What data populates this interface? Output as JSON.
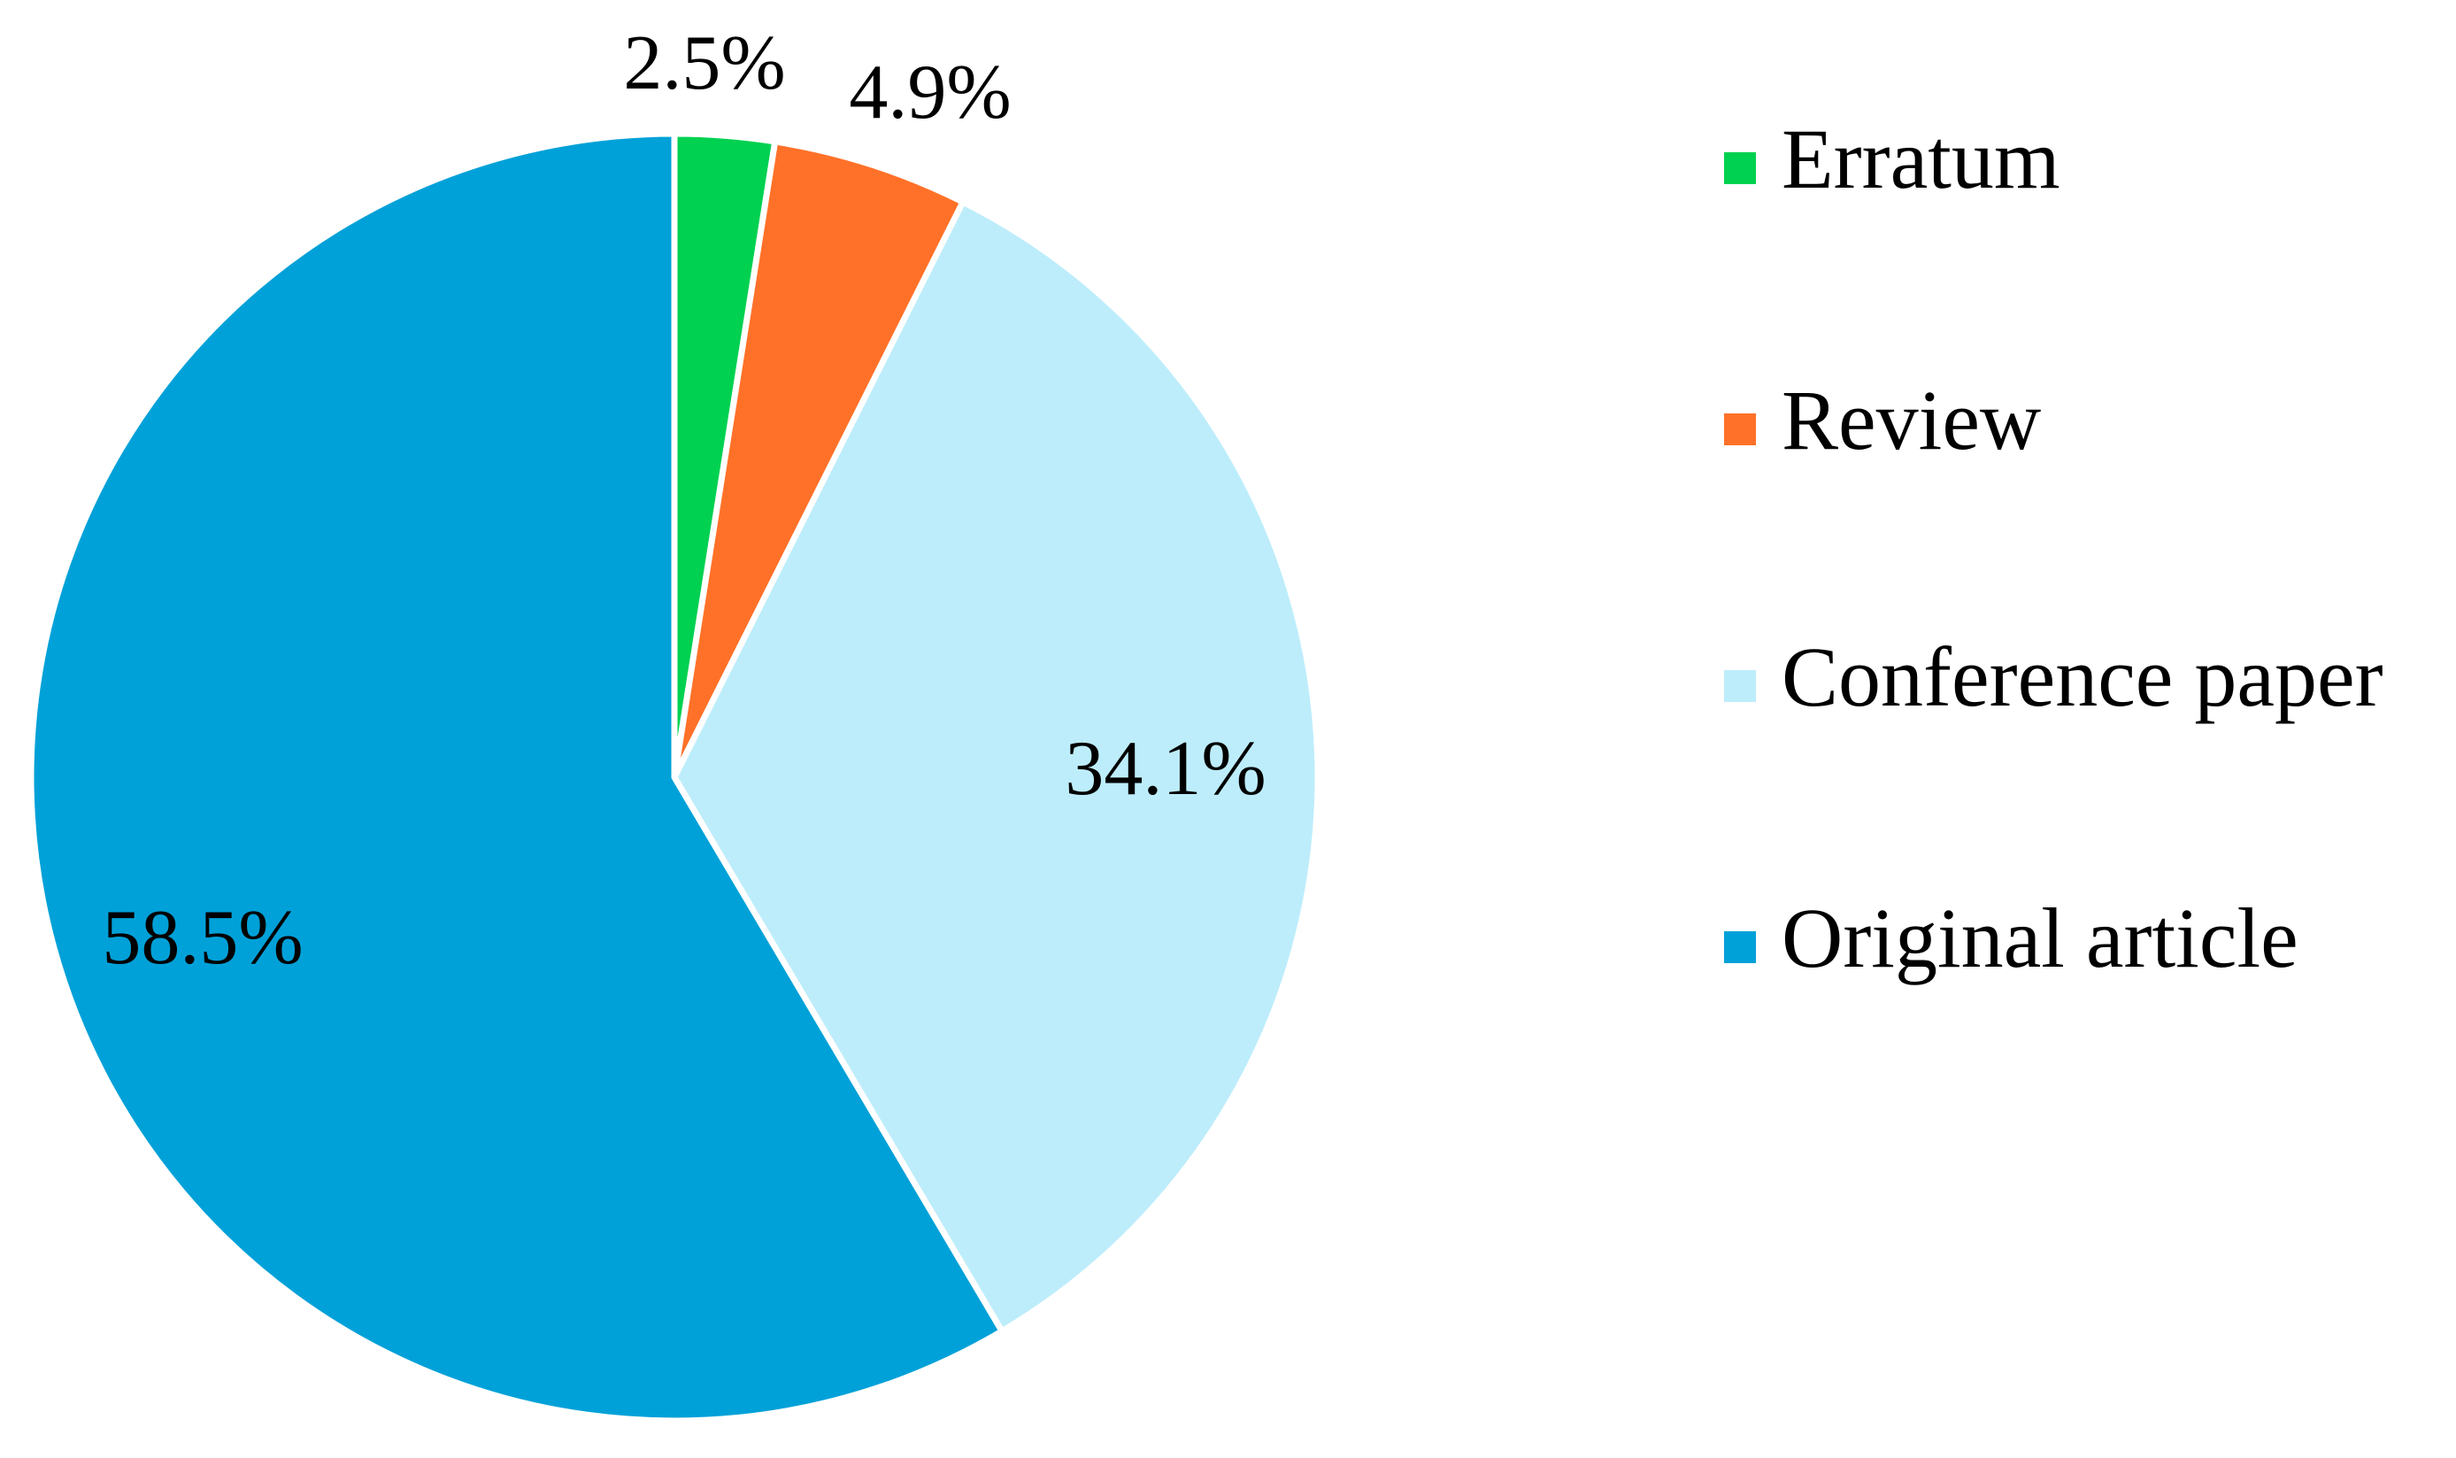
{
  "chart_data": {
    "type": "pie",
    "slices": [
      {
        "name": "Erratum",
        "value": 2.5,
        "label": "2.5%",
        "color": "#00d150"
      },
      {
        "name": "Review",
        "value": 4.9,
        "label": "4.9%",
        "color": "#ff7128"
      },
      {
        "name": "Conference paper",
        "value": 34.1,
        "label": "34.1%",
        "color": "#bdedfb"
      },
      {
        "name": "Original article",
        "value": 58.5,
        "label": "58.5%",
        "color": "#00a1d8"
      }
    ],
    "start_angle_deg": 0,
    "direction": "clockwise",
    "legend_position": "right",
    "slice_border_color": "#ffffff"
  }
}
